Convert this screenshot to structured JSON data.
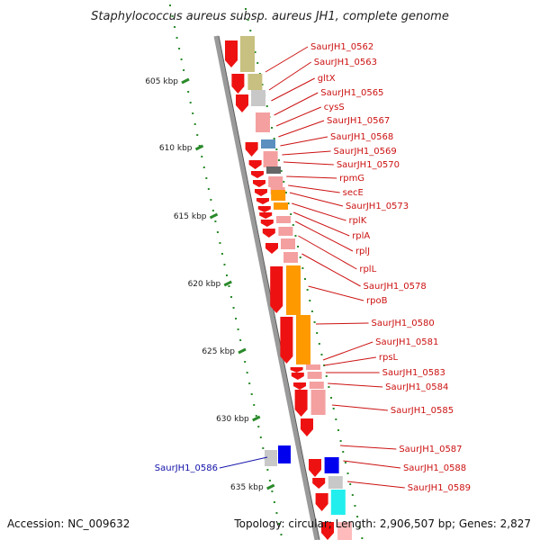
{
  "header": {
    "title": "Staphylococcus aureus subsp. aureus JH1, complete genome"
  },
  "footer": {
    "accession": "Accession: NC_009632",
    "summary": "Topology: circular; Length: 2,906,507 bp; Genes: 2,827"
  },
  "colors": {
    "backbone": "#9a9a9a",
    "tick": "#2a8a2a",
    "label_red": "#cc1111",
    "label_blue": "#1111aa",
    "orange": "#ff9900",
    "red": "#ee1111",
    "pink": "#f4a0a0",
    "olive": "#c8c080",
    "blue": "#0000ee",
    "cyan": "#22eeee"
  },
  "scale_ticks": [
    "605 kbp",
    "610 kbp",
    "615 kbp",
    "620 kbp",
    "625 kbp",
    "630 kbp",
    "635 kbp"
  ],
  "gene_labels": [
    "SaurJH1_0562",
    "SaurJH1_0563",
    "gltX",
    "SaurJH1_0565",
    "cysS",
    "SaurJH1_0567",
    "SaurJH1_0568",
    "SaurJH1_0569",
    "SaurJH1_0570",
    "rpmG",
    "secE",
    "SaurJH1_0573",
    "rplK",
    "rplA",
    "rplJ",
    "rplL",
    "SaurJH1_0578",
    "rpoB",
    "SaurJH1_0580",
    "SaurJH1_0581",
    "rpsL",
    "SaurJH1_0583",
    "SaurJH1_0584",
    "SaurJH1_0585",
    "SaurJH1_0587",
    "SaurJH1_0588",
    "SaurJH1_0589"
  ],
  "left_labels": [
    "SaurJH1_0586"
  ]
}
